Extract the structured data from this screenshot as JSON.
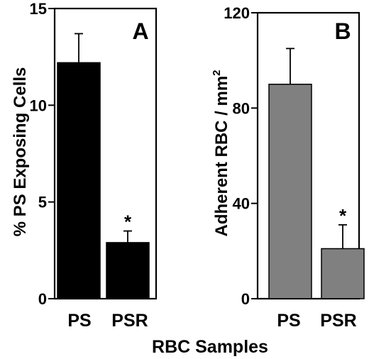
{
  "figure": {
    "xlabel": "RBC Samples"
  },
  "chart_data": [
    {
      "type": "bar",
      "panel_label": "A",
      "categories": [
        "PS",
        "PSR"
      ],
      "values": [
        12.2,
        2.9
      ],
      "error_bars": [
        1.5,
        0.6
      ],
      "significance": [
        "",
        "*"
      ],
      "ylabel": "% PS Exposing Cells",
      "ylim": [
        0,
        15
      ],
      "yticks": [
        "0",
        "5",
        "10",
        "15"
      ],
      "bar_color": "#000000"
    },
    {
      "type": "bar",
      "panel_label": "B",
      "categories": [
        "PS",
        "PSR"
      ],
      "values": [
        90,
        21
      ],
      "error_bars": [
        15,
        10
      ],
      "significance": [
        "",
        "*"
      ],
      "ylabel": "Adherent RBC  / mm",
      "ylabel_superscript": "2",
      "ylim": [
        0,
        120
      ],
      "yticks": [
        "0",
        "40",
        "80",
        "120"
      ],
      "bar_color": "#808080"
    }
  ]
}
